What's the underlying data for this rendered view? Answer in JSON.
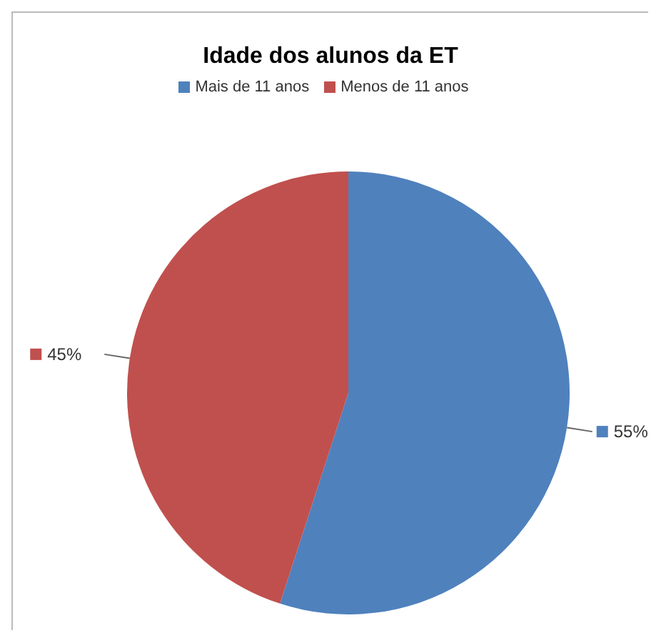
{
  "chart_data": {
    "type": "pie",
    "title": "Idade dos alunos da ET",
    "categories": [
      "Mais de 11 anos",
      "Menos de 11 anos"
    ],
    "values": [
      55,
      45
    ],
    "colors": [
      "#4f81bd",
      "#c0504d"
    ],
    "value_labels": [
      "55%",
      "45%"
    ],
    "legend": "top"
  }
}
